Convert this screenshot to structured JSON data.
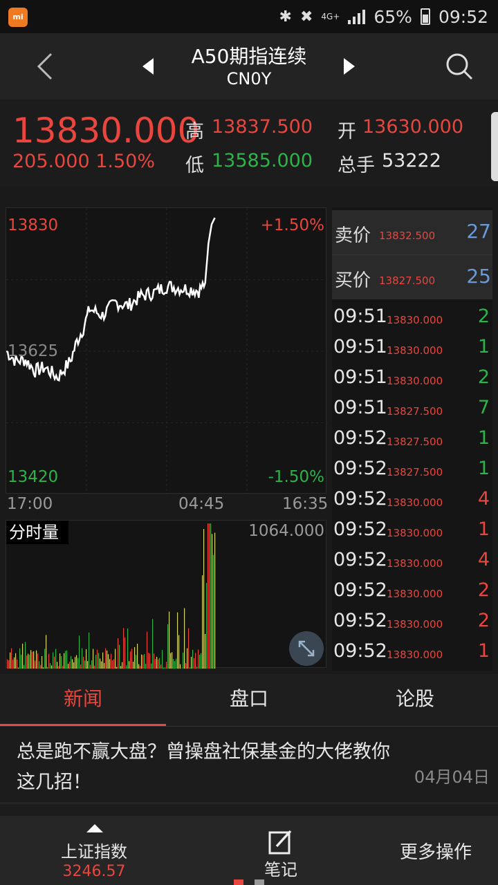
{
  "status_bar": {
    "app_badge": "mi",
    "network": "4G+",
    "battery": "65%",
    "time": "09:52",
    "icons": [
      "bluetooth-icon",
      "mute-icon",
      "signal-icon",
      "battery-icon"
    ]
  },
  "nav": {
    "title": "A50期指连续",
    "subtitle": "CN0Y"
  },
  "quote": {
    "last_price": "13830.000",
    "change": "205.000 1.50%",
    "high_label": "高",
    "high": "13837.500",
    "low_label": "低",
    "low": "13585.000",
    "open_label": "开",
    "open": "13630.000",
    "volume_label": "总手",
    "volume": "53222"
  },
  "chart": {
    "top_price": "13830",
    "mid_price": "13625",
    "bottom_price": "13420",
    "top_pct": "+1.50%",
    "bottom_pct": "-1.50%",
    "time_start": "17:00",
    "time_mid": "04:45",
    "time_end": "16:35",
    "volume_title": "分时量",
    "volume_max": "1064.000"
  },
  "chart_data": {
    "type": "line",
    "y_range": [
      13420,
      13830
    ],
    "x_progress": [
      0.0,
      0.03,
      0.06,
      0.09,
      0.12,
      0.16,
      0.2,
      0.22,
      0.24,
      0.26,
      0.3,
      0.34,
      0.38,
      0.42,
      0.46,
      0.5,
      0.54,
      0.58,
      0.6,
      0.62,
      0.625,
      0.63,
      0.64,
      0.65
    ],
    "prices": [
      13625,
      13610,
      13612,
      13595,
      13600,
      13585,
      13610,
      13640,
      13660,
      13690,
      13680,
      13700,
      13695,
      13710,
      13715,
      13725,
      13722,
      13720,
      13718,
      13730,
      13760,
      13790,
      13820,
      13830
    ],
    "volume_colors": {
      "up": "#e8463e",
      "down": "#2db34a",
      "flat": "#d8d86a"
    }
  },
  "order_book": {
    "ask_label": "卖价",
    "ask_price": "13832.500",
    "ask_qty": "27",
    "bid_label": "买价",
    "bid_price": "13827.500",
    "bid_qty": "25"
  },
  "trades": [
    {
      "time": "09:51",
      "price": "13830.000",
      "qty": "2",
      "side": "buy"
    },
    {
      "time": "09:51",
      "price": "13830.000",
      "qty": "1",
      "side": "buy"
    },
    {
      "time": "09:51",
      "price": "13830.000",
      "qty": "2",
      "side": "buy"
    },
    {
      "time": "09:51",
      "price": "13827.500",
      "qty": "7",
      "side": "buy"
    },
    {
      "time": "09:52",
      "price": "13827.500",
      "qty": "1",
      "side": "buy"
    },
    {
      "time": "09:52",
      "price": "13827.500",
      "qty": "1",
      "side": "buy"
    },
    {
      "time": "09:52",
      "price": "13830.000",
      "qty": "4",
      "side": "sell"
    },
    {
      "time": "09:52",
      "price": "13830.000",
      "qty": "1",
      "side": "sell"
    },
    {
      "time": "09:52",
      "price": "13830.000",
      "qty": "4",
      "side": "sell"
    },
    {
      "time": "09:52",
      "price": "13830.000",
      "qty": "2",
      "side": "sell"
    },
    {
      "time": "09:52",
      "price": "13830.000",
      "qty": "2",
      "side": "sell"
    },
    {
      "time": "09:52",
      "price": "13830.000",
      "qty": "1",
      "side": "sell"
    }
  ],
  "tabs": [
    {
      "label": "新闻",
      "active": true
    },
    {
      "label": "盘口",
      "active": false
    },
    {
      "label": "论股",
      "active": false
    }
  ],
  "news": {
    "title": "总是跑不赢大盘？曾操盘社保基金的大佬教你这几招！",
    "date": "04月04日"
  },
  "bottom_bar": {
    "index_name": "上证指数",
    "index_value": "3246.57",
    "note_label": "笔记",
    "more_label": "更多操作"
  },
  "colors": {
    "up": "#e8463e",
    "down": "#2db34a",
    "qty_blue": "#6a9bd8",
    "background": "#1a1a1a"
  }
}
